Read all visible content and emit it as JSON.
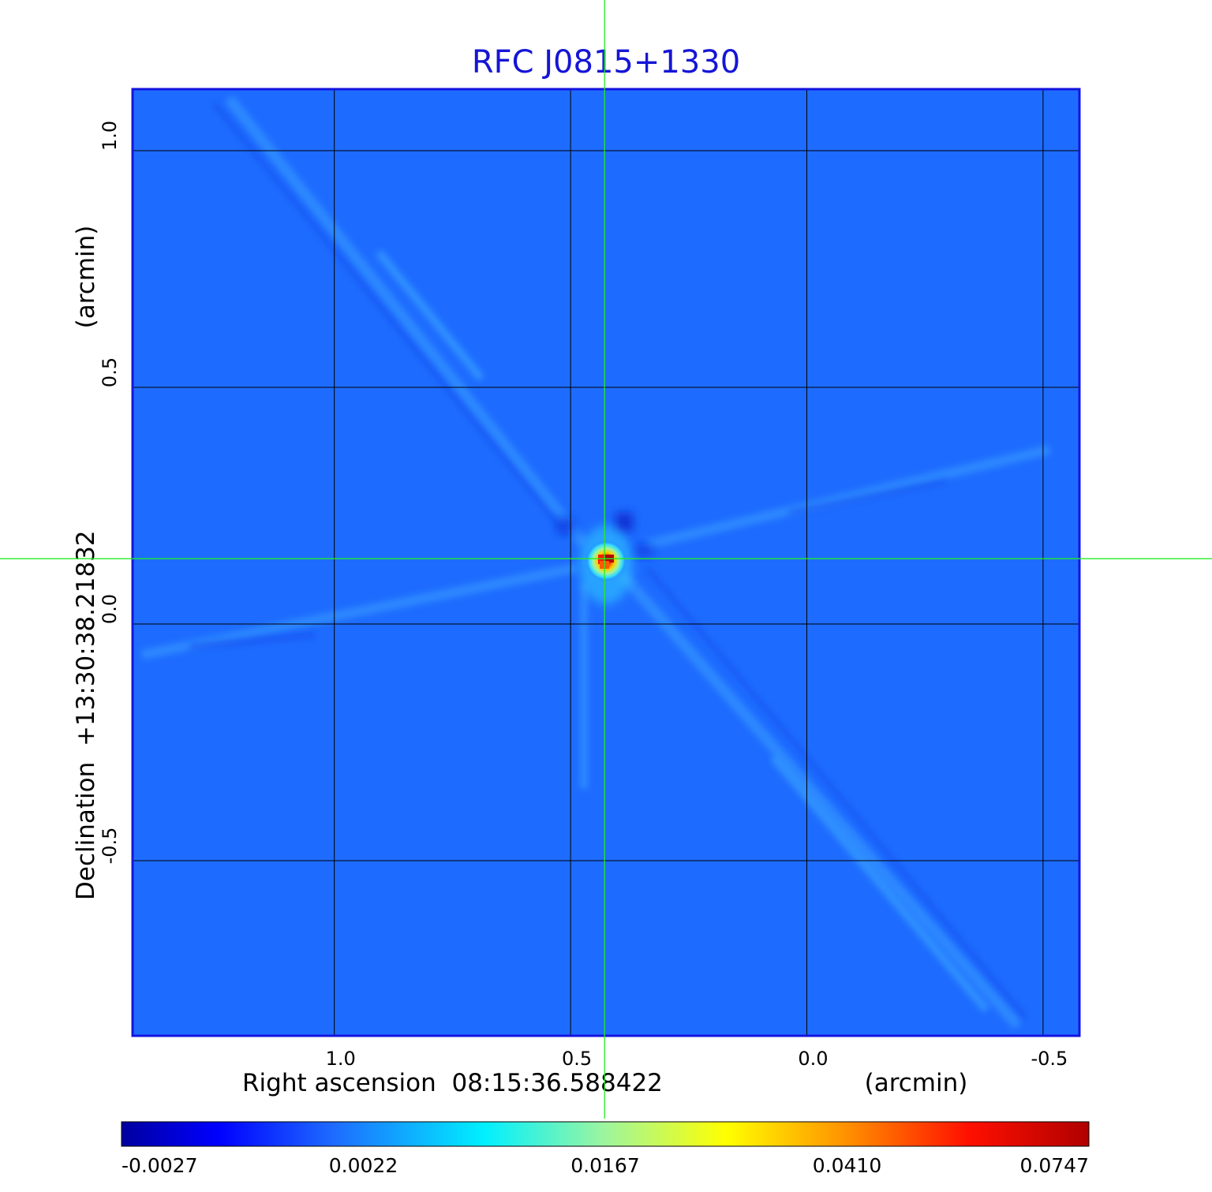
{
  "chart_data": {
    "type": "heatmap",
    "title": "RFC J0815+1330",
    "xlabel": "Right ascension  08:15:36.588422",
    "xunit": "(arcmin)",
    "ylabel": "Declination  +13:30:38.21832",
    "yunit": "(arcmin)",
    "x_ticks": [
      "1.0",
      "0.5",
      "0.0",
      "-0.5"
    ],
    "x_tick_values": [
      1.0,
      0.5,
      0.0,
      -0.5
    ],
    "y_ticks": [
      "1.0",
      "0.5",
      "0.0",
      "-0.5"
    ],
    "y_tick_values": [
      1.0,
      0.5,
      0.0,
      -0.5
    ],
    "xlim": [
      1.427,
      -0.577
    ],
    "ylim": [
      -0.87,
      1.13
    ],
    "grid": true,
    "crosshair": {
      "x": 0.428,
      "y": 0.138
    },
    "peak": {
      "x": 0.427,
      "y": 0.135
    },
    "colorbar": {
      "ticks": [
        "-0.0027",
        "0.0022",
        "0.0167",
        "0.0410",
        "0.0747"
      ],
      "colors": [
        "#0000a0",
        "#0000ff",
        "#1e6cff",
        "#00e0ff",
        "#9ef59e",
        "#ffff00",
        "#ff8000",
        "#ff1000",
        "#b00000"
      ],
      "placement": "bottom"
    },
    "colormap": "jet"
  }
}
